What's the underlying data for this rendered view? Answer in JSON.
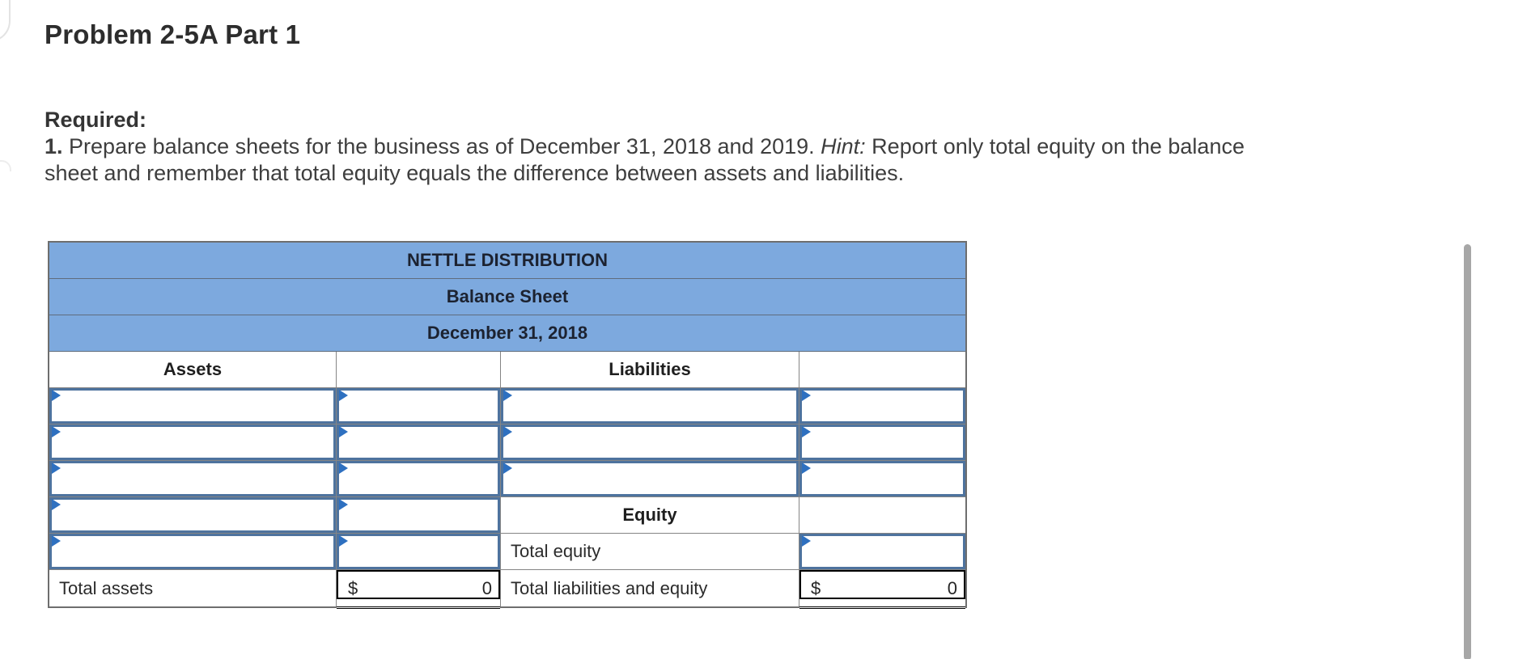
{
  "page": {
    "title": "Problem 2-5A Part 1"
  },
  "instructions": {
    "required_label": "Required:",
    "item_number": "1.",
    "text_before_hint": " Prepare balance sheets for the business as of December 31, 2018 and 2019. ",
    "hint_label": "Hint:",
    "text_line1_after_hint": " Report only total equity on the balance",
    "text_line2": "sheet and remember that total equity equals the difference between assets and liabilities."
  },
  "balance_sheet": {
    "company": "NETTLE DISTRIBUTION",
    "statement_title": "Balance Sheet",
    "statement_date": "December 31, 2018",
    "columns": {
      "assets": "Assets",
      "liabilities": "Liabilities"
    },
    "equity_header": "Equity",
    "total_equity_label": "Total equity",
    "total_assets_label": "Total assets",
    "total_liabilities_equity_label": "Total liabilities and equity",
    "totals": {
      "assets": {
        "currency": "$",
        "value": "0"
      },
      "liabilities_and_equity": {
        "currency": "$",
        "value": "0"
      }
    }
  },
  "colors": {
    "header_blue": "#7da9de",
    "input_border_blue": "#4e739e",
    "marker_blue": "#2e70c0",
    "grid_gray": "#858585"
  }
}
